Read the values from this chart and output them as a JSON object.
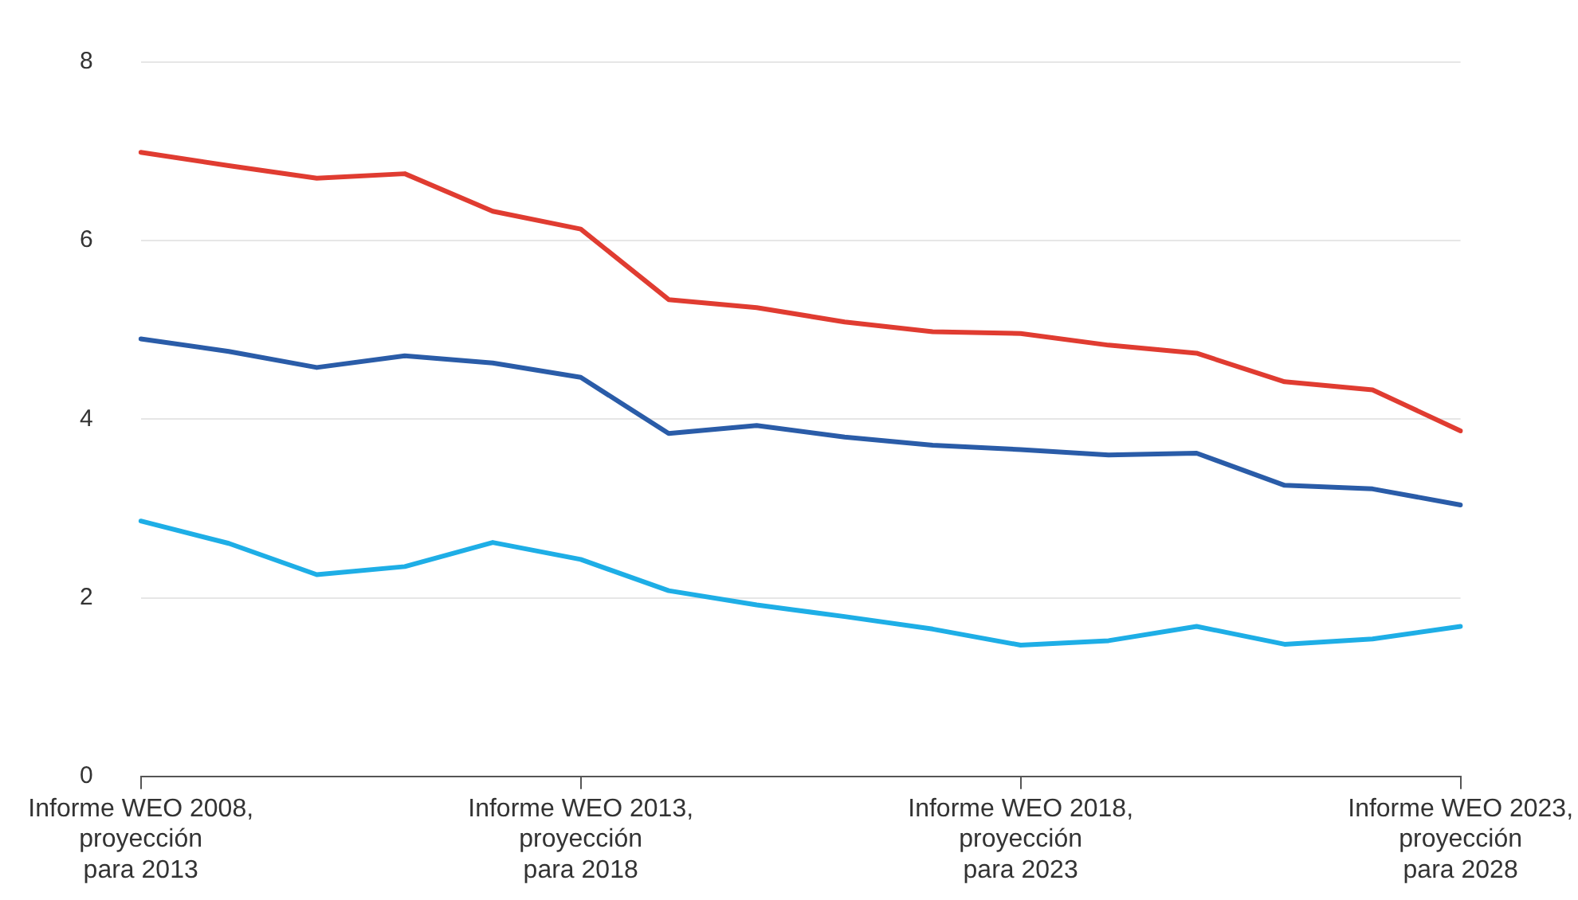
{
  "chart_data": {
    "type": "line",
    "categories": [
      "Informe WEO 2008,\nproyección\npara 2013",
      null,
      null,
      null,
      null,
      "Informe WEO 2013,\nproyección\npara 2018",
      null,
      null,
      null,
      null,
      "Informe WEO 2018,\nproyección\npara 2023",
      null,
      null,
      null,
      null,
      "Informe WEO 2023,\nproyección\npara 2028"
    ],
    "series": [
      {
        "color": "#e03c31",
        "values": [
          6.99,
          6.84,
          6.7,
          6.75,
          6.33,
          6.13,
          5.34,
          5.25,
          5.09,
          4.98,
          4.96,
          4.83,
          4.74,
          4.42,
          4.33,
          3.87
        ]
      },
      {
        "color": "#2a5ca8",
        "values": [
          4.9,
          4.76,
          4.58,
          4.71,
          4.63,
          4.47,
          3.84,
          3.93,
          3.8,
          3.71,
          3.66,
          3.6,
          3.62,
          3.26,
          3.22,
          3.04
        ]
      },
      {
        "color": "#1eaee6",
        "values": [
          2.86,
          2.61,
          2.26,
          2.35,
          2.62,
          2.43,
          2.08,
          1.92,
          1.79,
          1.65,
          1.47,
          1.52,
          1.68,
          1.48,
          1.54,
          1.68
        ]
      }
    ],
    "ylim": [
      0,
      8
    ],
    "yticks": [
      0,
      2,
      4,
      6,
      8
    ],
    "grid": "y",
    "legend": false,
    "marker": "none",
    "line_style": "solid"
  }
}
